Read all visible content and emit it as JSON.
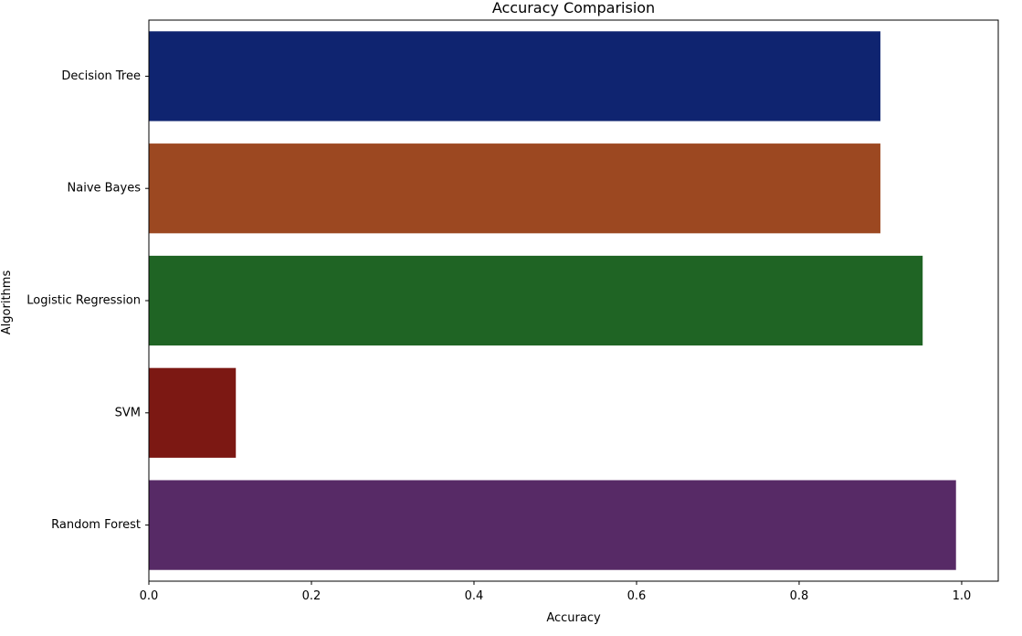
{
  "chart_data": {
    "type": "bar",
    "orientation": "horizontal",
    "title": "Accuracy Comparision",
    "xlabel": "Accuracy",
    "ylabel": "Algorithms",
    "xlim": [
      0,
      1.045
    ],
    "xticks": [
      0.0,
      0.2,
      0.4,
      0.6,
      0.8,
      1.0
    ],
    "xtick_labels": [
      "0.0",
      "0.2",
      "0.4",
      "0.6",
      "0.8",
      "1.0"
    ],
    "categories": [
      "Decision Tree",
      "Naive Bayes",
      "Logistic Regression",
      "SVM",
      "Random Forest"
    ],
    "values": [
      0.9,
      0.9,
      0.952,
      0.107,
      0.993
    ],
    "colors": [
      "#0f2470",
      "#9c4821",
      "#1f6424",
      "#7c1813",
      "#572a66"
    ],
    "grid": false,
    "legend": "none"
  }
}
